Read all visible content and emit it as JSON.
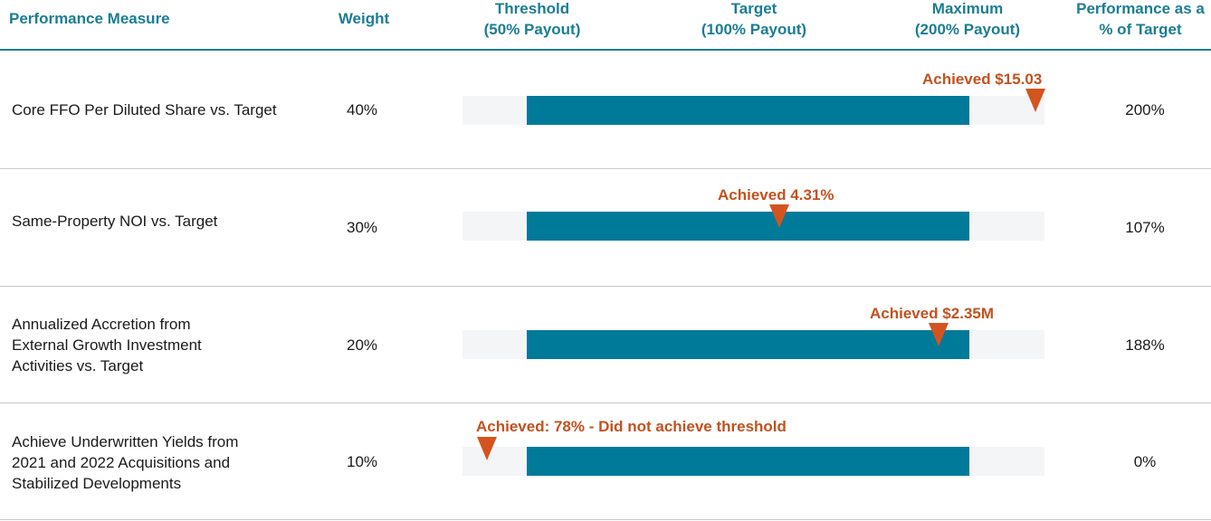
{
  "header": {
    "measure": "Performance Measure",
    "weight": "Weight",
    "threshold": "Threshold\n(50% Payout)",
    "target": "Target\n(100% Payout)",
    "maximum": "Maximum\n(200% Payout)",
    "performance": "Performance as a\n% of Target"
  },
  "colors": {
    "header_text": "#1b7d94",
    "bar": "#007a99",
    "track": "#f4f5f7",
    "marker": "#d4541f",
    "achieved_text": "#c4511f"
  },
  "chart_data": {
    "type": "bar",
    "categories": [
      "Core FFO Per Diluted Share vs. Target",
      "Same-Property NOI vs. Target",
      "Annualized Accretion from\nExternal Growth Investment\nActivities vs. Target",
      "Achieve Underwritten Yields from\n2021 and 2022 Acquisitions and\nStabilized Developments"
    ],
    "rows": [
      {
        "measure": "Core FFO Per Diluted Share vs. Target",
        "weight": "40%",
        "achieved_label": "Achieved $15.03",
        "performance": "200%",
        "performance_value": 200,
        "marker_position": 1.15
      },
      {
        "measure": "Same-Property NOI vs. Target",
        "weight": "30%",
        "achieved_label": "Achieved 4.31%",
        "performance": "107%",
        "performance_value": 107,
        "marker_position": 0.57
      },
      {
        "measure": "Annualized Accretion from\nExternal Growth Investment\nActivities vs. Target",
        "weight": "20%",
        "achieved_label": "Achieved $2.35M",
        "performance": "188%",
        "performance_value": 188,
        "marker_position": 0.93
      },
      {
        "measure": "Achieve Underwritten Yields from\n2021 and 2022 Acquisitions and\nStabilized Developments",
        "weight": "10%",
        "achieved_label": "Achieved: 78% - Did not achieve threshold",
        "performance": "0%",
        "performance_value": 0,
        "marker_position": -0.09
      }
    ],
    "scale": {
      "threshold_payout": "50%",
      "target_payout": "100%",
      "maximum_payout": "200%",
      "bar_start": 0,
      "bar_end": 1
    }
  }
}
